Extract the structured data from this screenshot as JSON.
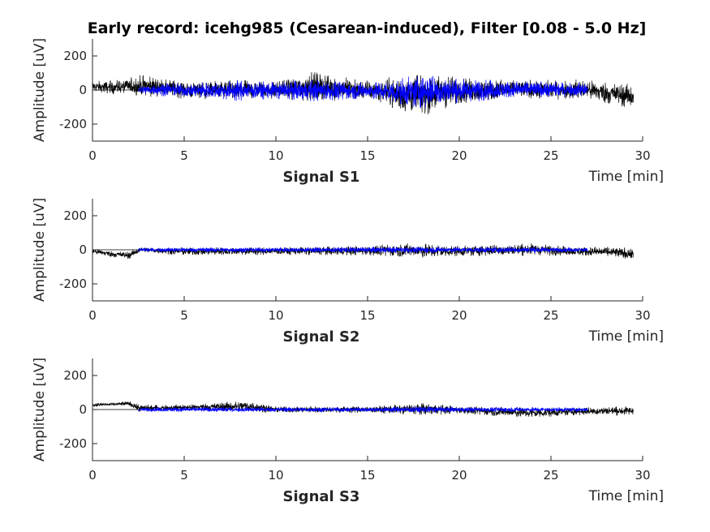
{
  "chart_data": {
    "type": "line",
    "title": "Early record: icehg985 (Cesarean-induced), Filter [0.08 - 5.0 Hz]",
    "colors": {
      "raw": "#000000",
      "filtered": "#0000ff",
      "axis": "#262626"
    },
    "panels": [
      {
        "name": "Signal S1",
        "xlabel": "Time [min]",
        "ylabel": "Amplitude [uV]",
        "xlim": [
          0,
          30
        ],
        "ylim": [
          -300,
          300
        ],
        "xticks": [
          0,
          5,
          10,
          15,
          20,
          25,
          30
        ],
        "yticks": [
          -200,
          0,
          200
        ],
        "grid": false,
        "series": [
          {
            "style": "raw",
            "x": [
              0,
              1,
              2,
              2.6,
              4,
              5,
              8,
              10,
              12,
              15,
              17,
              18,
              20,
              23,
              25,
              27,
              28,
              29.5
            ],
            "env_upper": [
              55,
              55,
              70,
              95,
              70,
              50,
              60,
              55,
              110,
              55,
              90,
              110,
              80,
              60,
              60,
              65,
              55,
              35
            ],
            "env_lower": [
              -15,
              -25,
              -25,
              -45,
              -40,
              -55,
              -55,
              -55,
              -70,
              -55,
              -145,
              -160,
              -85,
              -55,
              -55,
              -60,
              -90,
              -110
            ]
          },
          {
            "style": "filtered",
            "x": [
              2.5,
              4,
              5,
              8,
              10,
              12,
              15,
              17,
              18,
              20,
              23,
              25,
              27
            ],
            "env_upper": [
              25,
              50,
              40,
              60,
              50,
              65,
              45,
              75,
              100,
              70,
              55,
              50,
              45
            ],
            "env_lower": [
              -25,
              -40,
              -45,
              -65,
              -55,
              -70,
              -55,
              -100,
              -115,
              -75,
              -50,
              -45,
              -40
            ]
          }
        ]
      },
      {
        "name": "Signal S2",
        "xlabel": "Time [min]",
        "ylabel": "Amplitude [uV]",
        "xlim": [
          0,
          30
        ],
        "ylim": [
          -300,
          300
        ],
        "xticks": [
          0,
          5,
          10,
          15,
          20,
          25,
          30
        ],
        "yticks": [
          -200,
          0,
          200
        ],
        "grid": false,
        "series": [
          {
            "style": "raw",
            "x": [
              0,
              1,
              2,
              2.6,
              5,
              10,
              15,
              17,
              18.5,
              20,
              24,
              26,
              28,
              29.5
            ],
            "env_upper": [
              10,
              -5,
              -10,
              15,
              15,
              15,
              25,
              40,
              40,
              25,
              40,
              20,
              20,
              10
            ],
            "env_lower": [
              -25,
              -45,
              -55,
              -15,
              -35,
              -30,
              -35,
              -45,
              -55,
              -40,
              -35,
              -35,
              -45,
              -60
            ]
          },
          {
            "style": "filtered",
            "x": [
              2.5,
              5,
              10,
              15,
              17,
              20,
              24,
              27
            ],
            "env_upper": [
              12,
              15,
              15,
              18,
              20,
              18,
              18,
              12
            ],
            "env_lower": [
              -12,
              -15,
              -15,
              -18,
              -20,
              -18,
              -18,
              -12
            ]
          }
        ]
      },
      {
        "name": "Signal S3",
        "xlabel": "Time [min]",
        "ylabel": "Amplitude [uV]",
        "xlim": [
          0,
          30
        ],
        "ylim": [
          -300,
          300
        ],
        "xticks": [
          0,
          5,
          10,
          15,
          20,
          25,
          30
        ],
        "yticks": [
          -200,
          0,
          200
        ],
        "grid": false,
        "series": [
          {
            "style": "raw",
            "x": [
              0,
              1,
              2,
              2.6,
              5,
              8.5,
              10,
              15,
              18.3,
              20,
              24,
              26,
              28,
              29.5
            ],
            "env_upper": [
              40,
              40,
              50,
              30,
              30,
              55,
              20,
              20,
              40,
              20,
              15,
              10,
              20,
              20
            ],
            "env_lower": [
              15,
              20,
              20,
              -15,
              -5,
              -15,
              -20,
              -20,
              -35,
              -25,
              -55,
              -35,
              -35,
              -35
            ]
          },
          {
            "style": "filtered",
            "x": [
              2.5,
              5,
              10,
              15,
              18,
              20,
              24,
              27
            ],
            "env_upper": [
              12,
              15,
              15,
              15,
              20,
              15,
              15,
              12
            ],
            "env_lower": [
              -12,
              -15,
              -15,
              -15,
              -20,
              -15,
              -15,
              -12
            ]
          }
        ]
      }
    ]
  }
}
